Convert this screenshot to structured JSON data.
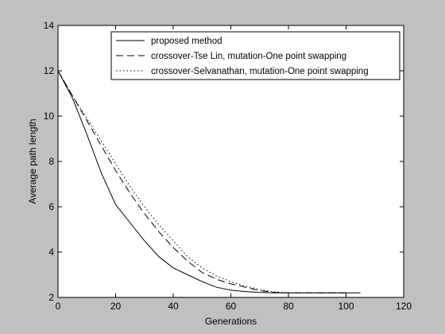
{
  "chart_data": {
    "type": "line",
    "title": "",
    "xlabel": "Generations",
    "ylabel": "Average path length",
    "xlim": [
      0,
      120
    ],
    "ylim": [
      2,
      14
    ],
    "xticks": [
      0,
      20,
      40,
      60,
      80,
      100,
      120
    ],
    "yticks": [
      2,
      4,
      6,
      8,
      10,
      12,
      14
    ],
    "grid": false,
    "legend_position": "top-right",
    "series": [
      {
        "name": "proposed method",
        "style": "solid",
        "color": "#000000",
        "x": [
          0,
          5,
          10,
          15,
          20,
          25,
          30,
          35,
          40,
          45,
          50,
          55,
          60,
          65,
          70,
          75,
          80,
          85,
          90,
          95,
          100,
          105
        ],
        "y": [
          12.0,
          10.8,
          9.2,
          7.5,
          6.1,
          5.3,
          4.5,
          3.8,
          3.3,
          3.0,
          2.7,
          2.45,
          2.32,
          2.26,
          2.22,
          2.2,
          2.2,
          2.2,
          2.2,
          2.2,
          2.2,
          2.2
        ]
      },
      {
        "name": "crossover-Tse Lin, mutation-One point swapping",
        "style": "dashed",
        "color": "#000000",
        "x": [
          0,
          5,
          10,
          15,
          20,
          25,
          30,
          35,
          40,
          45,
          50,
          55,
          60,
          65,
          70,
          75,
          80,
          85,
          90,
          95,
          100
        ],
        "y": [
          12.0,
          10.9,
          9.8,
          8.7,
          7.6,
          6.6,
          5.7,
          4.9,
          4.2,
          3.6,
          3.1,
          2.8,
          2.6,
          2.45,
          2.3,
          2.22,
          2.2,
          2.2,
          2.2,
          2.2,
          2.2
        ]
      },
      {
        "name": "crossover-Selvanathan, mutation-One point swapping",
        "style": "dotted",
        "color": "#000000",
        "x": [
          0,
          5,
          10,
          15,
          20,
          25,
          30,
          35,
          40,
          45,
          50,
          55,
          60,
          65,
          70,
          75,
          80,
          85,
          90,
          95,
          100
        ],
        "y": [
          12.0,
          10.9,
          9.9,
          8.9,
          7.9,
          6.9,
          6.0,
          5.2,
          4.5,
          3.8,
          3.3,
          2.95,
          2.7,
          2.5,
          2.35,
          2.25,
          2.2,
          2.2,
          2.2,
          2.2,
          2.2
        ]
      }
    ]
  }
}
